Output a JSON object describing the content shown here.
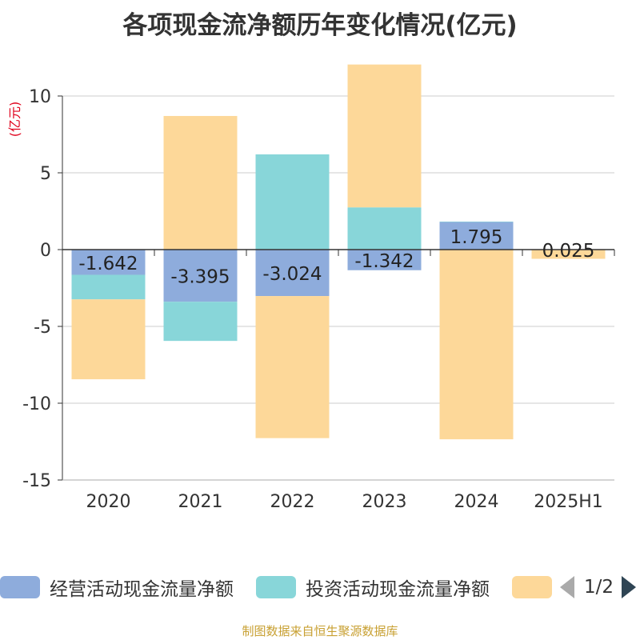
{
  "title": "各项现金流净额历年变化情况(亿元)",
  "unit": "(亿元)",
  "footer": "制图数据来自恒生聚源数据库",
  "legend": {
    "items": [
      {
        "label": "经营活动现金流量净额",
        "color": "#8eacdc"
      },
      {
        "label": "投资活动现金流量净额",
        "color": "#88d6d9"
      },
      {
        "label": "",
        "color": "#fdd899"
      }
    ],
    "page": "1/2"
  },
  "chart_data": {
    "type": "bar",
    "stacked": true,
    "categories": [
      "2020",
      "2021",
      "2022",
      "2023",
      "2024",
      "2025H1"
    ],
    "ylim": [
      -15,
      10
    ],
    "yticks": [
      10,
      5,
      0,
      -5,
      -10,
      -15
    ],
    "series": [
      {
        "name": "经营活动现金流量净额",
        "color": "#8eacdc",
        "values": [
          -1.642,
          -3.395,
          -3.024,
          -1.342,
          1.795,
          0.025
        ],
        "labels": [
          "-1.642",
          "-3.395",
          "-3.024",
          "-1.342",
          "1.795",
          "0.025"
        ]
      },
      {
        "name": "投资活动现金流量净额",
        "color": "#88d6d9",
        "values": [
          -1.6,
          -2.55,
          6.2,
          2.75,
          0.03,
          0.0
        ]
      },
      {
        "color": "#fdd899",
        "values": [
          -5.2,
          8.7,
          -9.25,
          9.3,
          -12.35,
          -0.6
        ]
      }
    ],
    "grid": true
  }
}
